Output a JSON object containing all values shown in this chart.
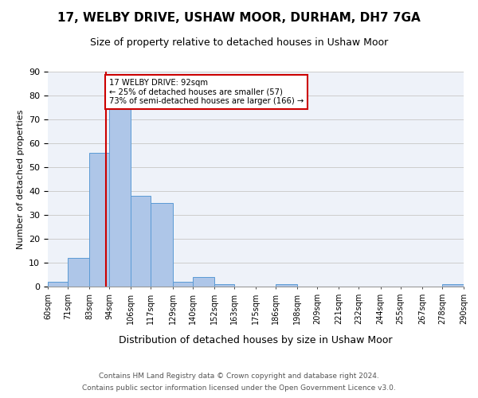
{
  "title": "17, WELBY DRIVE, USHAW MOOR, DURHAM, DH7 7GA",
  "subtitle": "Size of property relative to detached houses in Ushaw Moor",
  "xlabel": "Distribution of detached houses by size in Ushaw Moor",
  "ylabel": "Number of detached properties",
  "bar_values": [
    2,
    12,
    56,
    76,
    38,
    35,
    2,
    4,
    1,
    0,
    0,
    1,
    0,
    0,
    0,
    0,
    0,
    0,
    0,
    1
  ],
  "bin_labels": [
    "60sqm",
    "71sqm",
    "83sqm",
    "94sqm",
    "106sqm",
    "117sqm",
    "129sqm",
    "140sqm",
    "152sqm",
    "163sqm",
    "175sqm",
    "186sqm",
    "198sqm",
    "209sqm",
    "221sqm",
    "232sqm",
    "244sqm",
    "255sqm",
    "267sqm",
    "278sqm",
    "290sqm"
  ],
  "bin_edges": [
    60,
    71,
    83,
    94,
    106,
    117,
    129,
    140,
    152,
    163,
    175,
    186,
    198,
    209,
    221,
    232,
    244,
    255,
    267,
    278,
    290
  ],
  "vline_x": 92,
  "bar_color": "#aec6e8",
  "bar_edge_color": "#5b9bd5",
  "vline_color": "#cc0000",
  "annotation_text": "17 WELBY DRIVE: 92sqm\n← 25% of detached houses are smaller (57)\n73% of semi-detached houses are larger (166) →",
  "annotation_box_color": "#ffffff",
  "annotation_box_edge": "#cc0000",
  "ylim": [
    0,
    90
  ],
  "yticks": [
    0,
    10,
    20,
    30,
    40,
    50,
    60,
    70,
    80,
    90
  ],
  "footer1": "Contains HM Land Registry data © Crown copyright and database right 2024.",
  "footer2": "Contains public sector information licensed under the Open Government Licence v3.0.",
  "bg_color": "#eef2f9"
}
